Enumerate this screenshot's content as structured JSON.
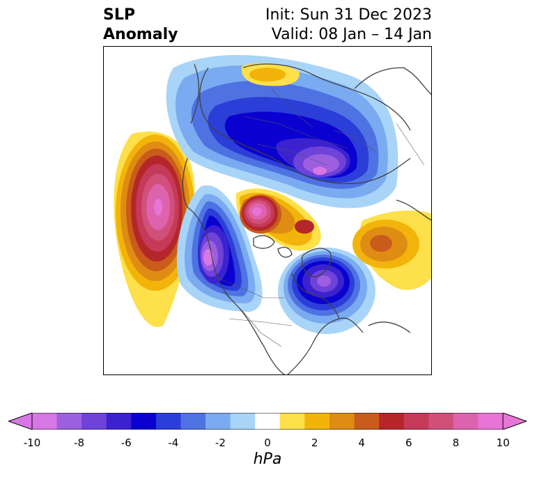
{
  "title": {
    "left_line1": "SLP",
    "left_line2": "Anomaly",
    "right_line1": "Init: Sun 31 Dec 2023",
    "right_line2": "Valid: 08 Jan – 14 Jan"
  },
  "map": {
    "projection": "north-polar-stereographic",
    "features": [
      "coastlines",
      "country-borders",
      "state-borders",
      "filled-anomaly-contours"
    ]
  },
  "colorbar": {
    "units": "hPa",
    "tick_labels": [
      "-10",
      "-8",
      "-6",
      "-4",
      "-2",
      "0",
      "2",
      "4",
      "6",
      "8",
      "10"
    ],
    "levels": [
      -10,
      -9,
      -8,
      -7,
      -6,
      -5,
      -4,
      -3,
      -2,
      -1,
      1,
      2,
      3,
      4,
      5,
      6,
      7,
      8,
      9,
      10
    ],
    "colors": [
      "#d777e6",
      "#9c5fe0",
      "#6f42d8",
      "#3c22cf",
      "#0a00d0",
      "#2b3ed8",
      "#4f72e2",
      "#7aaaf0",
      "#a8d4f8",
      "#ffffff",
      "#fde04a",
      "#f2b40a",
      "#df8c14",
      "#c95c1a",
      "#b5262a",
      "#c43a58",
      "#d0507a",
      "#de63ae",
      "#e874d7"
    ],
    "extend": "both",
    "min_color": "#d777e6",
    "max_color": "#e874d7"
  },
  "anomaly_centers": [
    {
      "name": "north-pacific-high",
      "sign": "positive",
      "peak_hpa": 10
    },
    {
      "name": "western-north-america-low",
      "sign": "negative",
      "peak_hpa": -10
    },
    {
      "name": "arctic-high",
      "sign": "positive",
      "peak_hpa": 10
    },
    {
      "name": "siberian-low",
      "sign": "negative",
      "peak_hpa": -10
    },
    {
      "name": "north-atlantic-low",
      "sign": "negative",
      "peak_hpa": -10
    },
    {
      "name": "east-atlantic-high",
      "sign": "positive",
      "peak_hpa": 5
    },
    {
      "name": "scandinavian-high",
      "sign": "positive",
      "peak_hpa": 3
    }
  ]
}
